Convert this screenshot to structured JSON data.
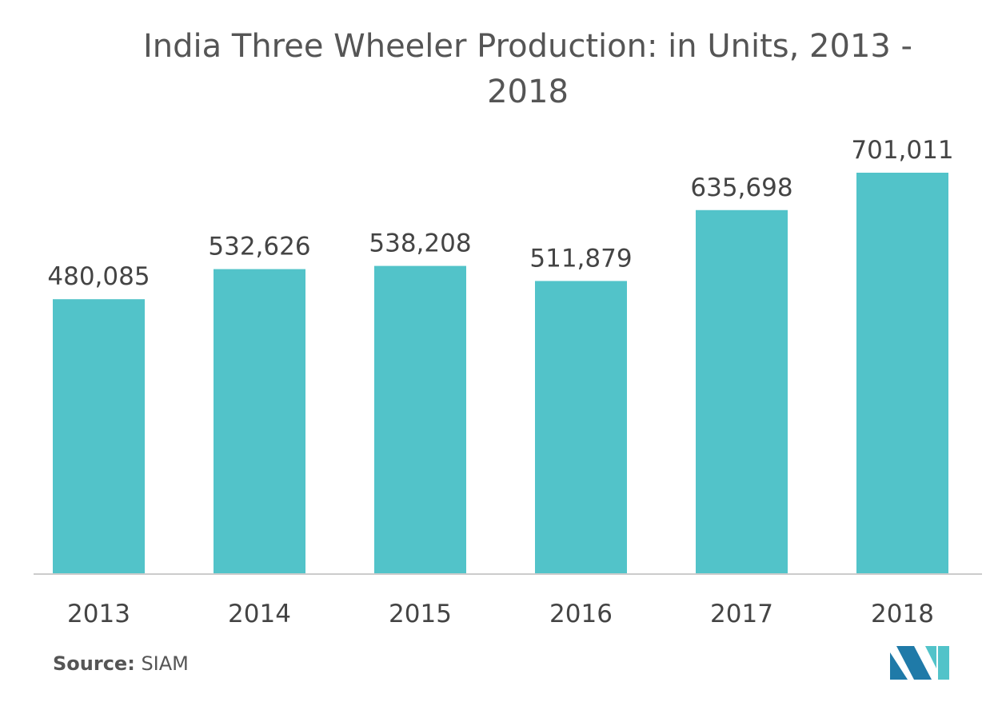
{
  "chart_data": {
    "type": "bar",
    "title": "India Three Wheeler Production: in Units, 2013 - 2018",
    "categories": [
      "2013",
      "2014",
      "2015",
      "2016",
      "2017",
      "2018"
    ],
    "values": [
      480085,
      532626,
      538208,
      511879,
      635698,
      701011
    ],
    "value_labels": [
      "480,085",
      "532,626",
      "538,208",
      "511,879",
      "635,698",
      "701,011"
    ],
    "xlabel": "",
    "ylabel": "",
    "ylim": [
      0,
      701011
    ],
    "grid": false,
    "bar_color": "#52c3c9"
  },
  "source": {
    "label": "Source:",
    "text": "SIAM"
  },
  "logo": {
    "icon": "mordor-intelligence-logo-icon",
    "colors": [
      "#1f7aa8",
      "#52c3c9"
    ]
  }
}
